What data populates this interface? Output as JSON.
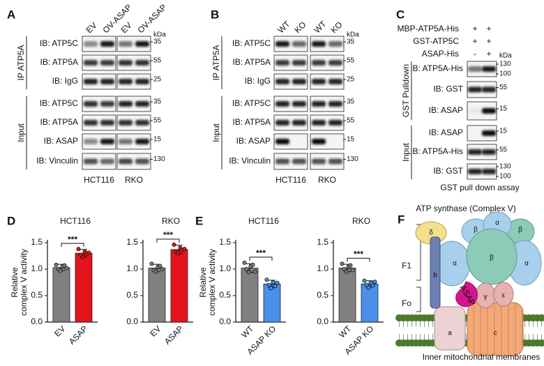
{
  "panels": {
    "A": {
      "label": "A",
      "lanes": [
        "EV",
        "OV-ASAP",
        "EV",
        "OV-ASAP"
      ],
      "unit": "kDa",
      "groups": [
        {
          "name": "IP ATP5A",
          "rows": [
            {
              "label": "IB: ATP5C",
              "markers": [
                "35"
              ]
            },
            {
              "label": "IB: ATP5A",
              "markers": [
                "55"
              ]
            },
            {
              "label": "IB: IgG",
              "markers": [
                "25"
              ]
            }
          ]
        },
        {
          "name": "Input",
          "rows": [
            {
              "label": "IB: ATP5C",
              "markers": [
                "35"
              ]
            },
            {
              "label": "IB: ATP5A",
              "markers": [
                "55"
              ]
            },
            {
              "label": "IB: ASAP",
              "markers": [
                "15"
              ]
            },
            {
              "label": "IB: Vinculin",
              "markers": [
                "130"
              ]
            }
          ]
        }
      ],
      "cells": [
        "HCT116",
        "RKO"
      ]
    },
    "B": {
      "label": "B",
      "lanes": [
        "WT",
        "KO",
        "WT",
        "KO"
      ],
      "unit": "kDa",
      "groups": [
        {
          "name": "IP ATP5A",
          "rows": [
            {
              "label": "IB: ATP5C",
              "markers": [
                "35"
              ]
            },
            {
              "label": "IB: ATP5A",
              "markers": [
                "55"
              ]
            },
            {
              "label": "IB: IgG",
              "markers": [
                "25"
              ]
            }
          ]
        },
        {
          "name": "Input",
          "rows": [
            {
              "label": "IB: ATP5C",
              "markers": [
                "35"
              ]
            },
            {
              "label": "IB: ATP5A",
              "markers": [
                "55"
              ]
            },
            {
              "label": "IB: ASAP",
              "markers": [
                "15"
              ]
            },
            {
              "label": "IB: Vinculin",
              "markers": [
                "130"
              ]
            }
          ]
        }
      ],
      "cells": [
        "HCT116",
        "RKO"
      ]
    },
    "C": {
      "label": "C",
      "conditions": [
        {
          "name": "MBP-ATP5A-His",
          "signs": [
            "+",
            "+"
          ]
        },
        {
          "name": "GST-ATP5C",
          "signs": [
            "+",
            "+"
          ]
        },
        {
          "name": "ASAP-His",
          "signs": [
            "-",
            "+"
          ]
        }
      ],
      "unit": "kDa",
      "groups": [
        {
          "name": "GST Pulldown",
          "rows": [
            {
              "label": "IB: ATP5A-His",
              "markers": [
                "130",
                "100"
              ]
            },
            {
              "label": "IB: GST",
              "markers": [
                "55"
              ]
            },
            {
              "label": "IB: ASAP",
              "markers": [
                "15"
              ]
            }
          ]
        },
        {
          "name": "Input",
          "rows": [
            {
              "label": "IB: ASAP",
              "markers": [
                "15"
              ]
            },
            {
              "label": "IB: ATP5A-His",
              "markers": [
                "55"
              ]
            },
            {
              "label": "IB: GST",
              "markers": [
                "130",
                "100"
              ]
            }
          ]
        }
      ],
      "caption": "GST pull down assay"
    },
    "F": {
      "label": "F",
      "title": "ATP synthase (Complex V)",
      "subunits": {
        "delta": "δ",
        "beta1": "β",
        "alpha1": "α",
        "beta2": "β",
        "alpha2": "α",
        "beta3": "β",
        "alpha3": "α",
        "b": "b",
        "asap": "ASAP",
        "gamma": "γ",
        "epsilon": "ε",
        "a": "a",
        "c": "c"
      },
      "regions": [
        "F1",
        "Fo"
      ],
      "membrane": "Inner mitochondrial membranes"
    }
  },
  "chart_data": [
    {
      "type": "bar",
      "panel_label": "D",
      "title": "HCT116",
      "ylabel": [
        "Relative",
        "complex V activity"
      ],
      "categories": [
        "EV",
        "ASAP"
      ],
      "colors": [
        "#808080",
        "#e3141c"
      ],
      "values": [
        1.03,
        1.3
      ],
      "errors": [
        0.06,
        0.07
      ],
      "points": [
        [
          1.08,
          1.0,
          0.97,
          1.05,
          1.07,
          1.02
        ],
        [
          1.38,
          1.27,
          1.22,
          1.33,
          1.29,
          1.31
        ]
      ],
      "ylim": [
        0,
        1.5
      ],
      "yticks": [
        {
          "value": 0,
          "label": "0.0"
        },
        {
          "value": 0.5,
          "label": "0.5"
        },
        {
          "value": 1,
          "label": "1.0"
        },
        {
          "value": 1.5,
          "label": "1.5"
        }
      ],
      "significance": "***"
    },
    {
      "type": "bar",
      "title": "RKO",
      "categories": [
        "EV",
        "ASAP"
      ],
      "colors": [
        "#808080",
        "#e3141c"
      ],
      "values": [
        1.02,
        1.37
      ],
      "errors": [
        0.07,
        0.08
      ],
      "points": [
        [
          1.1,
          0.98,
          0.95,
          1.04,
          1.06,
          1.0
        ],
        [
          1.46,
          1.32,
          1.3,
          1.4,
          1.36,
          1.38
        ]
      ],
      "ylim": [
        0,
        1.5
      ],
      "yticks": [
        {
          "value": 0,
          "label": "0.0"
        },
        {
          "value": 0.5,
          "label": "0.5"
        },
        {
          "value": 1,
          "label": "1.0"
        },
        {
          "value": 1.5,
          "label": "1.5"
        }
      ],
      "significance": "***"
    },
    {
      "type": "bar",
      "panel_label": "E",
      "title": "HCT116",
      "ylabel": [
        "Relative",
        "complex V activity"
      ],
      "categories": [
        "WT",
        "ASAP KO"
      ],
      "colors": [
        "#808080",
        "#4a90e8"
      ],
      "values": [
        1.02,
        0.72
      ],
      "errors": [
        0.08,
        0.07
      ],
      "points": [
        [
          1.12,
          1.0,
          0.94,
          1.05,
          1.08,
          0.95
        ],
        [
          0.8,
          0.7,
          0.64,
          0.75,
          0.68,
          0.74
        ]
      ],
      "ylim": [
        0,
        1.5
      ],
      "yticks": [
        {
          "value": 0,
          "label": "0.0"
        },
        {
          "value": 0.5,
          "label": "0.5"
        },
        {
          "value": 1,
          "label": "1.0"
        },
        {
          "value": 1.5,
          "label": "1.5"
        }
      ],
      "significance": "***"
    },
    {
      "type": "bar",
      "title": "RKO",
      "categories": [
        "WT",
        "ASAP KO"
      ],
      "colors": [
        "#808080",
        "#4a90e8"
      ],
      "values": [
        1.02,
        0.72
      ],
      "errors": [
        0.07,
        0.06
      ],
      "points": [
        [
          1.1,
          1.0,
          0.95,
          1.04,
          1.07,
          0.98
        ],
        [
          0.78,
          0.7,
          0.65,
          0.74,
          0.69,
          0.76
        ]
      ],
      "ylim": [
        0,
        1.5
      ],
      "yticks": [
        {
          "value": 0,
          "label": "0.0"
        },
        {
          "value": 0.5,
          "label": "0.5"
        },
        {
          "value": 1,
          "label": "1.0"
        },
        {
          "value": 1.5,
          "label": "1.5"
        }
      ],
      "significance": "***"
    }
  ]
}
